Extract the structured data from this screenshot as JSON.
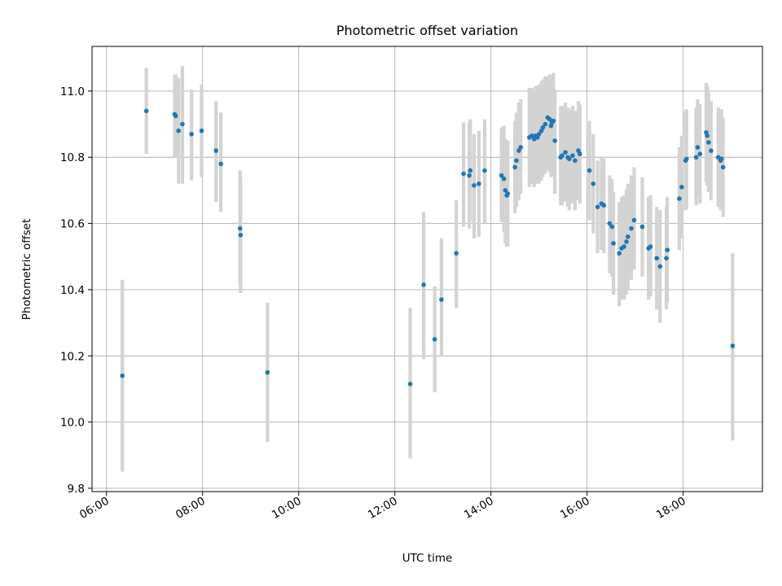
{
  "chart_data": {
    "type": "scatter",
    "title": "Photometric offset variation",
    "xlabel": "UTC time",
    "ylabel": "Photometric offset",
    "x_unit": "hours UTC",
    "xlim": [
      5.7,
      19.65
    ],
    "ylim": [
      9.79,
      11.135
    ],
    "x_ticks": [
      6,
      8,
      10,
      12,
      14,
      16,
      18
    ],
    "x_tick_labels": [
      "06:00",
      "08:00",
      "10:00",
      "12:00",
      "14:00",
      "16:00",
      "18:00"
    ],
    "y_ticks": [
      9.8,
      10.0,
      10.2,
      10.4,
      10.6,
      10.8,
      11.0
    ],
    "y_tick_labels": [
      "9.8",
      "10.0",
      "10.2",
      "10.4",
      "10.6",
      "10.8",
      "11.0"
    ],
    "grid": true,
    "marker_color": "#1f77b4",
    "errorbar_color": "#d3d3d3",
    "series": [
      {
        "x": [
          6.33,
          6.83,
          7.42,
          7.44,
          7.5,
          7.58,
          7.77,
          7.98,
          8.28,
          8.38,
          8.78,
          8.79,
          9.35,
          12.32,
          12.6,
          12.83,
          12.97,
          13.28,
          13.43,
          13.55,
          13.57,
          13.65,
          13.75,
          13.87,
          14.22,
          14.27,
          14.3,
          14.33,
          14.35,
          14.5,
          14.53,
          14.58,
          14.62,
          14.8,
          14.85,
          14.9,
          14.93,
          14.97,
          15.0,
          15.05,
          15.08,
          15.13,
          15.18,
          15.22,
          15.25,
          15.27,
          15.3,
          15.33,
          15.45,
          15.48,
          15.55,
          15.6,
          15.63,
          15.7,
          15.75,
          15.82,
          15.85,
          16.05,
          16.13,
          16.22,
          16.3,
          16.35,
          16.47,
          16.52,
          16.55,
          16.67,
          16.72,
          16.77,
          16.82,
          16.85,
          16.92,
          16.98,
          17.15,
          17.28,
          17.32,
          17.45,
          17.52,
          17.65,
          17.67,
          17.92,
          17.97,
          18.05,
          18.07,
          18.27,
          18.3,
          18.35,
          18.48,
          18.5,
          18.53,
          18.58,
          18.73,
          18.78,
          18.8,
          18.83,
          19.03
        ],
        "y": [
          10.14,
          10.94,
          10.93,
          10.925,
          10.88,
          10.9,
          10.87,
          10.88,
          10.82,
          10.78,
          10.585,
          10.565,
          10.15,
          10.115,
          10.415,
          10.25,
          10.37,
          10.51,
          10.75,
          10.745,
          10.76,
          10.715,
          10.72,
          10.76,
          10.745,
          10.735,
          10.7,
          10.685,
          10.69,
          10.77,
          10.79,
          10.82,
          10.83,
          10.86,
          10.865,
          10.855,
          10.865,
          10.86,
          10.87,
          10.88,
          10.89,
          10.9,
          10.92,
          10.915,
          10.895,
          10.905,
          10.91,
          10.85,
          10.8,
          10.805,
          10.815,
          10.8,
          10.795,
          10.805,
          10.79,
          10.82,
          10.81,
          10.76,
          10.72,
          10.65,
          10.66,
          10.655,
          10.6,
          10.59,
          10.54,
          10.51,
          10.525,
          10.53,
          10.545,
          10.56,
          10.585,
          10.61,
          10.59,
          10.525,
          10.53,
          10.495,
          10.47,
          10.495,
          10.52,
          10.675,
          10.71,
          10.79,
          10.795,
          10.8,
          10.83,
          10.81,
          10.875,
          10.865,
          10.845,
          10.82,
          10.8,
          10.79,
          10.795,
          10.77,
          10.23
        ],
        "yerr_lower": [
          9.85,
          10.81,
          10.8,
          10.8,
          10.72,
          10.72,
          10.73,
          10.74,
          10.665,
          10.635,
          10.415,
          10.39,
          9.94,
          9.89,
          10.19,
          10.09,
          10.2,
          10.345,
          10.59,
          10.585,
          10.605,
          10.555,
          10.56,
          10.6,
          10.605,
          10.575,
          10.54,
          10.53,
          10.53,
          10.63,
          10.65,
          10.67,
          10.69,
          10.71,
          10.72,
          10.71,
          10.72,
          10.72,
          10.72,
          10.73,
          10.74,
          10.75,
          10.76,
          10.755,
          10.74,
          10.745,
          10.75,
          10.69,
          10.655,
          10.655,
          10.665,
          10.65,
          10.64,
          10.66,
          10.64,
          10.67,
          10.66,
          10.61,
          10.57,
          10.51,
          10.52,
          10.51,
          10.45,
          10.44,
          10.385,
          10.35,
          10.37,
          10.37,
          10.385,
          10.4,
          10.43,
          10.46,
          10.44,
          10.37,
          10.38,
          10.34,
          10.3,
          10.34,
          10.36,
          10.52,
          10.555,
          10.64,
          10.645,
          10.655,
          10.68,
          10.66,
          10.725,
          10.715,
          10.695,
          10.67,
          10.65,
          10.64,
          10.645,
          10.62,
          9.945
        ],
        "yerr_upper": [
          10.43,
          11.07,
          11.05,
          11.05,
          11.04,
          11.075,
          11.005,
          11.02,
          10.97,
          10.935,
          10.76,
          10.74,
          10.36,
          10.345,
          10.635,
          10.41,
          10.555,
          10.67,
          10.905,
          10.905,
          10.915,
          10.87,
          10.88,
          10.915,
          10.89,
          10.895,
          10.855,
          10.84,
          10.85,
          10.91,
          10.935,
          10.965,
          10.975,
          11.01,
          11.01,
          11.0,
          11.015,
          11.01,
          11.02,
          11.03,
          11.035,
          11.045,
          11.045,
          11.05,
          11.045,
          11.05,
          11.055,
          11.005,
          10.955,
          10.955,
          10.965,
          10.95,
          10.945,
          10.955,
          10.94,
          10.97,
          10.96,
          10.91,
          10.87,
          10.79,
          10.8,
          10.795,
          10.745,
          10.735,
          10.695,
          10.665,
          10.68,
          10.685,
          10.705,
          10.72,
          10.745,
          10.77,
          10.74,
          10.68,
          10.685,
          10.65,
          10.64,
          10.65,
          10.68,
          10.83,
          10.865,
          10.94,
          10.945,
          10.95,
          10.975,
          10.96,
          11.025,
          11.015,
          10.995,
          10.97,
          10.95,
          10.94,
          10.945,
          10.92,
          10.51
        ]
      }
    ]
  }
}
